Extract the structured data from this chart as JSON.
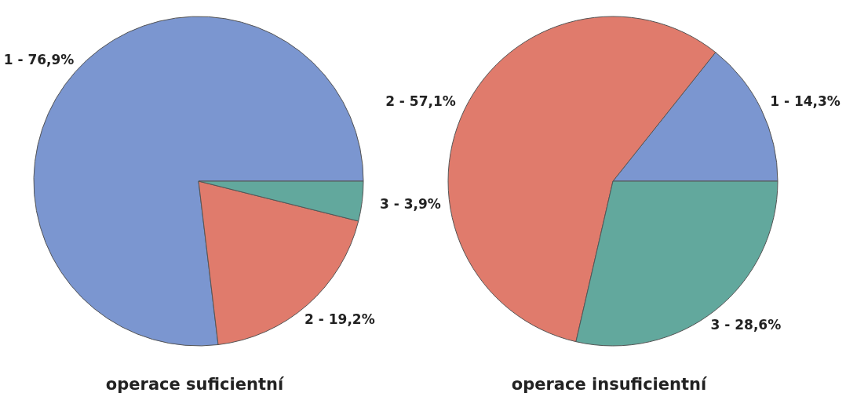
{
  "chart_data": [
    {
      "type": "pie",
      "title": "operace suficientní",
      "categories": [
        "1",
        "2",
        "3"
      ],
      "values": [
        76.9,
        19.2,
        3.9
      ],
      "value_labels": [
        "76,9%",
        "19,2%",
        "3,9%"
      ],
      "colors": [
        "#7b96d0",
        "#e07b6c",
        "#62a89d"
      ]
    },
    {
      "type": "pie",
      "title": "operace insuficientní",
      "categories": [
        "1",
        "2",
        "3"
      ],
      "values": [
        14.3,
        57.1,
        28.6
      ],
      "value_labels": [
        "14,3%",
        "57,1%",
        "28,6%"
      ],
      "colors": [
        "#7b96d0",
        "#e07b6c",
        "#62a89d"
      ]
    }
  ]
}
